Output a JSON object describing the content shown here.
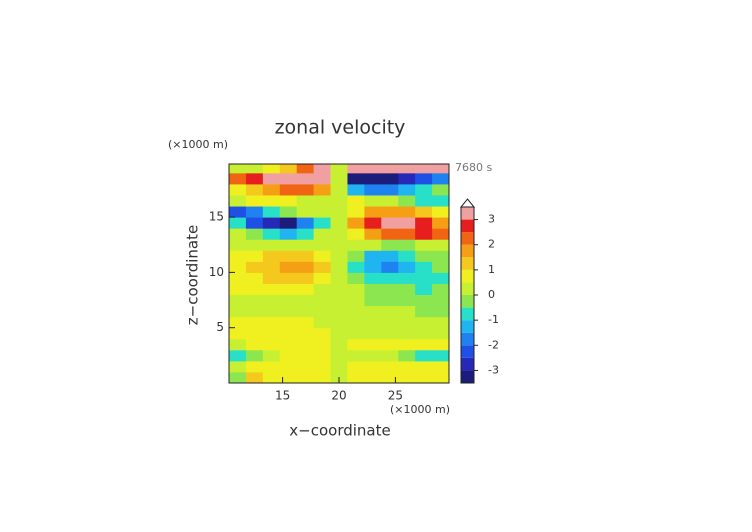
{
  "chart_data": {
    "type": "heatmap",
    "title": "zonal velocity",
    "y_unit": "(×1000 m)",
    "x_unit": "(×1000 m)",
    "time_label": "7680 s",
    "xlabel": "x−coordinate",
    "ylabel": "z−coordinate",
    "xlim": [
      10.25,
      29.75
    ],
    "ylim": [
      0,
      19.8
    ],
    "xticks": [
      15,
      20,
      25
    ],
    "yticks": [
      5,
      10,
      15
    ],
    "x": [
      11,
      12.5,
      14,
      15.5,
      17,
      18.5,
      20,
      21.5,
      23,
      24.5,
      26,
      27.5,
      29
    ],
    "y": [
      0.5,
      1.5,
      2.5,
      3.5,
      4.5,
      5.5,
      6.5,
      7.5,
      8.5,
      9.5,
      10.5,
      11.5,
      12.5,
      13.5,
      14.5,
      15.5,
      16.5,
      17.5,
      18.5,
      19.5
    ],
    "values": [
      [
        -0.3,
        1.2,
        0.5,
        0.6,
        0.6,
        0.6,
        0.3,
        0.6,
        0.6,
        0.6,
        0.6,
        0.6,
        0.6
      ],
      [
        0.4,
        0.5,
        0.6,
        0.5,
        0.6,
        0.6,
        0.3,
        0.6,
        0.6,
        0.6,
        0.6,
        0.6,
        0.6
      ],
      [
        -0.8,
        -0.3,
        0.3,
        0.6,
        0.6,
        0.6,
        0.3,
        0.3,
        0.2,
        0,
        -0.3,
        -0.6,
        -0.8
      ],
      [
        0.3,
        0.6,
        0.6,
        0.6,
        0.6,
        0.6,
        0.2,
        0.5,
        0.6,
        0.6,
        0.6,
        0.6,
        0.5
      ],
      [
        0.6,
        0.7,
        0.7,
        0.6,
        0.6,
        0.5,
        0.2,
        0.2,
        0.2,
        0.2,
        0.2,
        0.2,
        0.3
      ],
      [
        0.6,
        0.6,
        0.6,
        0.5,
        0.5,
        0.4,
        0.1,
        0.3,
        0.2,
        0.2,
        0.2,
        0.1,
        0
      ],
      [
        0.2,
        0.2,
        0.2,
        0.3,
        0.3,
        0.2,
        0.1,
        0.2,
        0.2,
        0.1,
        0,
        -0.2,
        -0.4
      ],
      [
        0.3,
        0.4,
        0.4,
        0.3,
        0.3,
        0.2,
        0.1,
        0,
        -0.1,
        -0.2,
        -0.2,
        -0.2,
        -0.2
      ],
      [
        0.6,
        0.8,
        0.9,
        0.8,
        0.6,
        0.4,
        0.2,
        0,
        -0.2,
        -0.4,
        -0.3,
        -0.6,
        -0.5
      ],
      [
        0.5,
        0.8,
        1,
        1,
        1,
        0.6,
        0.2,
        -0.3,
        -0.8,
        -1,
        -0.8,
        -0.8,
        -0.6
      ],
      [
        0.8,
        1,
        1.3,
        1.6,
        1.5,
        1,
        0.3,
        -0.8,
        -1.5,
        -1.7,
        -1.2,
        -0.6,
        -0.3
      ],
      [
        0.5,
        0.8,
        1,
        1.2,
        1.3,
        0.8,
        0.2,
        -0.5,
        -1.2,
        -1.5,
        -1,
        -0.5,
        -0.2
      ],
      [
        0.2,
        0.3,
        0.3,
        0.2,
        0.3,
        0.2,
        0.2,
        0.2,
        0,
        -0.3,
        -0.5,
        0,
        0.3
      ],
      [
        0.2,
        -0.5,
        -1,
        -1.5,
        -0.8,
        0,
        0.3,
        0.8,
        1.5,
        2,
        2.3,
        2.5,
        2
      ],
      [
        -1,
        -2.5,
        -3,
        -3.3,
        -2,
        -1,
        0,
        1.5,
        2.5,
        3,
        3.2,
        2.5,
        1.5
      ],
      [
        -2.5,
        -2,
        -1,
        -0.3,
        0,
        0.3,
        0.2,
        0.8,
        1.5,
        1.8,
        1.5,
        1,
        0.5
      ],
      [
        0.3,
        0.5,
        0.5,
        0.5,
        0.3,
        0.2,
        0.3,
        0.5,
        0.3,
        0,
        -0.5,
        -0.8,
        -1
      ],
      [
        0.5,
        1,
        1.5,
        2,
        2,
        1.5,
        0,
        -1.5,
        -2,
        -2,
        -1.5,
        -1,
        -0.5
      ],
      [
        2,
        2.5,
        3,
        3.2,
        3.3,
        3,
        0,
        -3.3,
        -3.4,
        -3.3,
        -3,
        -2.5,
        -2
      ],
      [
        0.3,
        0.3,
        0.5,
        1,
        2,
        3.2,
        0,
        3.2,
        3.2,
        3,
        3,
        3,
        3
      ]
    ],
    "levels": [
      -3.5,
      -3,
      -2.5,
      -2,
      -1.5,
      -1,
      -0.5,
      0,
      0.5,
      1,
      1.5,
      2,
      2.5,
      3,
      3.5
    ],
    "colors": [
      "#1c1c7a",
      "#2828b8",
      "#1e50e6",
      "#1e82f0",
      "#20b4f0",
      "#28e0c8",
      "#8ce650",
      "#c8f032",
      "#f0f020",
      "#f5c81e",
      "#f5a014",
      "#f06414",
      "#e61e1e",
      "#f0a0a0"
    ],
    "colorbar_ticks": [
      -3,
      -2,
      -1,
      0,
      1,
      2,
      3
    ]
  }
}
